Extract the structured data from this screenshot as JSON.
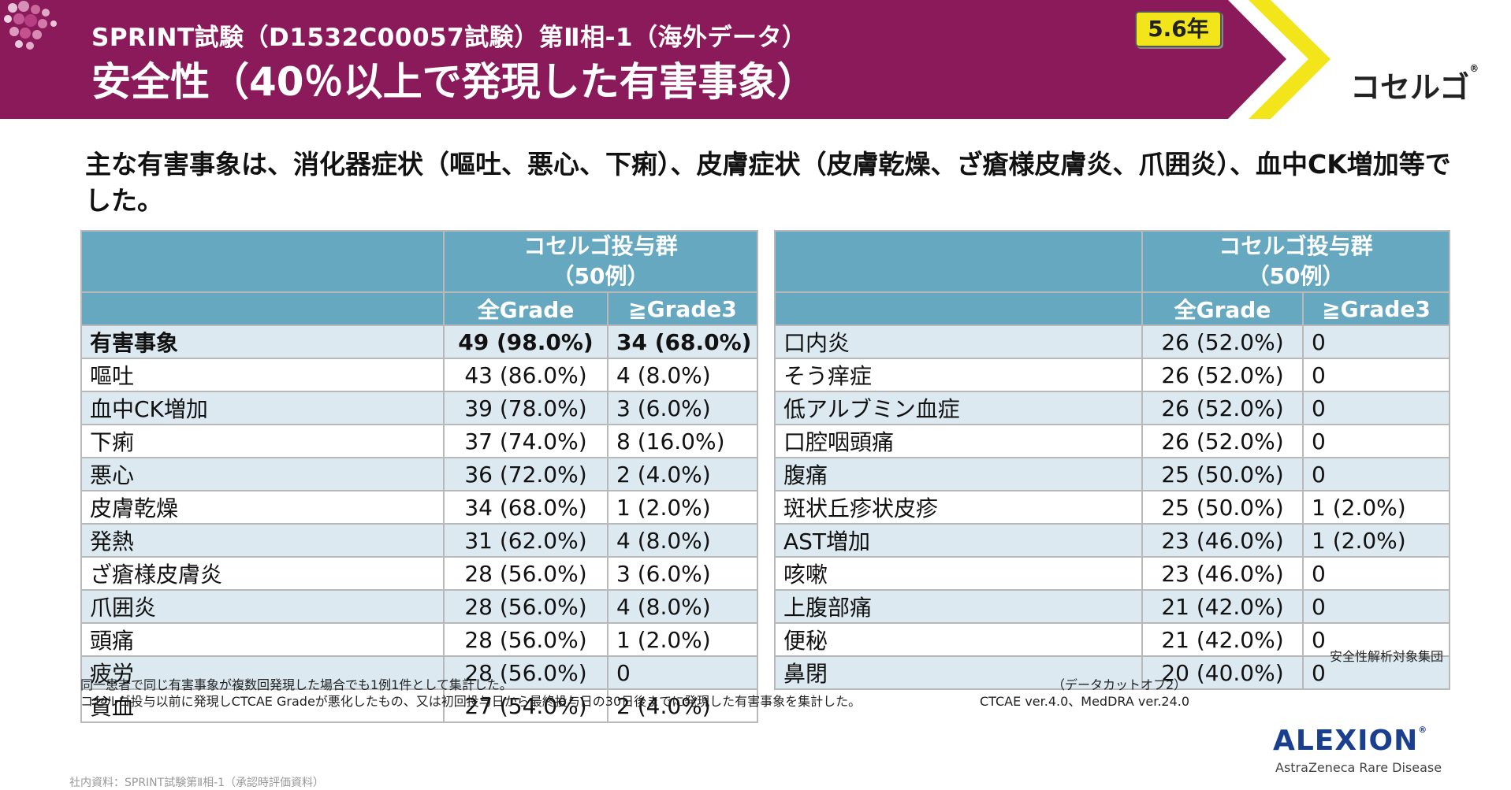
{
  "header": {
    "subtitle": "SPRINT試験（D1532C00057試験）第Ⅱ相-1（海外データ）",
    "title": "安全性（40％以上で発現した有害事象）",
    "badge": "5.6年",
    "brand": "コセルゴ",
    "brand_mark": "®",
    "band_color": "#8b1a5a",
    "accent_color": "#f2e51a"
  },
  "lead": "主な有害事象は、消化器症状（嘔吐、悪心、下痢）、皮膚症状（皮膚乾燥、ざ瘡様皮膚炎、爪囲炎）、血中CK増加等でした。",
  "tables": {
    "group_line1": "コセルゴ投与群",
    "group_line2": "（50例）",
    "col_all": "全Grade",
    "col_g3": "≧Grade3",
    "left": [
      {
        "name": "有害事象",
        "all": "49 (98.0%)",
        "g3": "34 (68.0%)"
      },
      {
        "name": "嘔吐",
        "all": "43 (86.0%)",
        "g3": "4 (8.0%)"
      },
      {
        "name": "血中CK増加",
        "all": "39 (78.0%)",
        "g3": "3 (6.0%)"
      },
      {
        "name": "下痢",
        "all": "37 (74.0%)",
        "g3": "8 (16.0%)"
      },
      {
        "name": "悪心",
        "all": "36 (72.0%)",
        "g3": "2 (4.0%)"
      },
      {
        "name": "皮膚乾燥",
        "all": "34 (68.0%)",
        "g3": "1 (2.0%)"
      },
      {
        "name": "発熱",
        "all": "31 (62.0%)",
        "g3": "4 (8.0%)"
      },
      {
        "name": "ざ瘡様皮膚炎",
        "all": "28 (56.0%)",
        "g3": "3 (6.0%)"
      },
      {
        "name": "爪囲炎",
        "all": "28 (56.0%)",
        "g3": "4 (8.0%)"
      },
      {
        "name": "頭痛",
        "all": "28 (56.0%)",
        "g3": "1 (2.0%)"
      },
      {
        "name": "疲労",
        "all": "28 (56.0%)",
        "g3": "0"
      },
      {
        "name": "貧血",
        "all": "27 (54.0%)",
        "g3": "2 (4.0%)"
      }
    ],
    "right": [
      {
        "name": "口内炎",
        "all": "26 (52.0%)",
        "g3": "0"
      },
      {
        "name": "そう痒症",
        "all": "26 (52.0%)",
        "g3": "0"
      },
      {
        "name": "低アルブミン血症",
        "all": "26 (52.0%)",
        "g3": "0"
      },
      {
        "name": "口腔咽頭痛",
        "all": "26 (52.0%)",
        "g3": "0"
      },
      {
        "name": "腹痛",
        "all": "25 (50.0%)",
        "g3": "0"
      },
      {
        "name": "斑状丘疹状皮疹",
        "all": "25 (50.0%)",
        "g3": "1 (2.0%)"
      },
      {
        "name": "AST増加",
        "all": "23 (46.0%)",
        "g3": "1 (2.0%)"
      },
      {
        "name": "咳嗽",
        "all": "23 (46.0%)",
        "g3": "0"
      },
      {
        "name": "上腹部痛",
        "all": "21 (42.0%)",
        "g3": "0"
      },
      {
        "name": "便秘",
        "all": "21 (42.0%)",
        "g3": "0"
      },
      {
        "name": "鼻閉",
        "all": "20 (40.0%)",
        "g3": "0"
      }
    ]
  },
  "analysis_set": "安全性解析対象集団",
  "footnotes": [
    "同一患者で同じ有害事象が複数回発現した場合でも1例1件として集計した。",
    "コセルゴ投与以前に発現しCTCAE Gradeが悪化したもの、又は初回投与日から最終投与日の30日後までに発現した有害事象を集計した。"
  ],
  "datacut": "（データカットオフ2）",
  "versions": "CTCAE ver.4.0、MedDRA ver.24.0",
  "company": {
    "name": "ALEXION",
    "mark": "®",
    "tagline": "AstraZeneca Rare Disease"
  },
  "source": "社内資料：SPRINT試験第Ⅱ相-1（承認時評価資料）"
}
